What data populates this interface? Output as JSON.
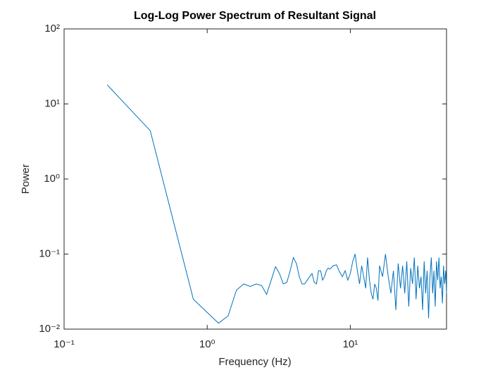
{
  "chart_data": {
    "type": "line",
    "title": "Log-Log Power Spectrum of Resultant Signal",
    "xlabel": "Frequency (Hz)",
    "ylabel": "Power",
    "xscale": "log",
    "yscale": "log",
    "xlim": [
      0.1,
      47
    ],
    "ylim": [
      0.01,
      100
    ],
    "xticks": [
      {
        "value": 0.1,
        "label": "10⁻¹"
      },
      {
        "value": 1,
        "label": "10⁰"
      },
      {
        "value": 10,
        "label": "10¹"
      }
    ],
    "yticks": [
      {
        "value": 0.01,
        "label": "10⁻²"
      },
      {
        "value": 0.1,
        "label": "10⁻¹"
      },
      {
        "value": 1,
        "label": "10⁰"
      },
      {
        "value": 10,
        "label": "10¹"
      },
      {
        "value": 100,
        "label": "10²"
      }
    ],
    "color": "#0072bd",
    "x": [
      0.2,
      0.4,
      0.8,
      1.2,
      1.4,
      1.6,
      1.8,
      2.0,
      2.2,
      2.4,
      2.6,
      2.8,
      3.0,
      3.2,
      3.4,
      3.6,
      3.8,
      4.0,
      4.2,
      4.4,
      4.6,
      4.8,
      5.0,
      5.2,
      5.4,
      5.6,
      5.8,
      6.0,
      6.2,
      6.4,
      6.6,
      6.8,
      7.0,
      7.2,
      7.6,
      8.0,
      8.4,
      8.8,
      9.2,
      9.6,
      10.0,
      10.4,
      10.8,
      11.2,
      11.6,
      12.0,
      12.4,
      12.8,
      13.2,
      13.6,
      14.0,
      14.4,
      14.8,
      15.2,
      15.6,
      16.0,
      16.8,
      17.6,
      18.4,
      19.2,
      20.0,
      20.8,
      21.6,
      22.4,
      23.2,
      24.0,
      24.8,
      25.6,
      26.4,
      27.2,
      28.0,
      28.8,
      29.6,
      30.4,
      31.2,
      32.0,
      32.8,
      33.6,
      34.4,
      35.2,
      36.0,
      36.8,
      37.6,
      38.4,
      39.2,
      40.0,
      40.8,
      41.6,
      42.4,
      43.2,
      44.0,
      44.8,
      45.6,
      46.4,
      47
    ],
    "values": [
      18,
      4.4,
      0.025,
      0.012,
      0.015,
      0.033,
      0.04,
      0.037,
      0.04,
      0.038,
      0.029,
      0.045,
      0.068,
      0.055,
      0.04,
      0.042,
      0.06,
      0.09,
      0.075,
      0.05,
      0.04,
      0.04,
      0.045,
      0.05,
      0.055,
      0.042,
      0.04,
      0.06,
      0.06,
      0.045,
      0.05,
      0.06,
      0.065,
      0.063,
      0.07,
      0.072,
      0.058,
      0.05,
      0.06,
      0.045,
      0.055,
      0.08,
      0.1,
      0.06,
      0.04,
      0.07,
      0.05,
      0.035,
      0.09,
      0.045,
      0.03,
      0.025,
      0.04,
      0.035,
      0.024,
      0.07,
      0.05,
      0.1,
      0.05,
      0.03,
      0.06,
      0.018,
      0.075,
      0.035,
      0.07,
      0.03,
      0.08,
      0.02,
      0.065,
      0.04,
      0.09,
      0.025,
      0.07,
      0.035,
      0.05,
      0.018,
      0.08,
      0.03,
      0.06,
      0.014,
      0.05,
      0.09,
      0.03,
      0.06,
      0.02,
      0.08,
      0.045,
      0.09,
      0.035,
      0.05,
      0.022,
      0.07,
      0.04,
      0.06,
      0.03
    ]
  }
}
